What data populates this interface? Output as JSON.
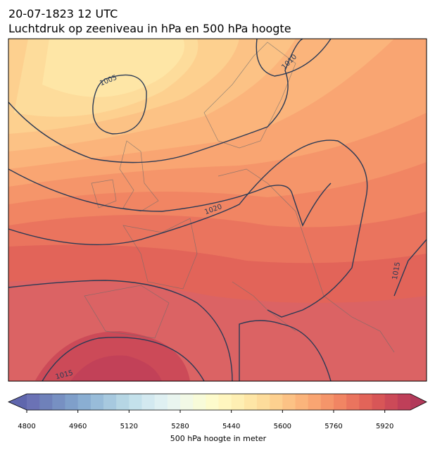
{
  "header": {
    "title": "20-07-1823 12 UTC",
    "subtitle": "Luchtdruk op zeeniveau in hPa en 500 hPa hoogte"
  },
  "map": {
    "contour_labels": [
      1005,
      1010,
      1020,
      1015,
      1015
    ]
  },
  "chart_data": {
    "type": "colorbar",
    "xlim": [
      4800,
      6000
    ],
    "xticks": [
      4800,
      4960,
      5120,
      5280,
      5440,
      5600,
      5760,
      5920
    ],
    "xlabel": "500 hPa hoogte in meter",
    "colors": [
      "#6b72b5",
      "#6f81ba",
      "#7790c2",
      "#7f9fca",
      "#8aaed2",
      "#98bcd9",
      "#a7c9df",
      "#b6d6e4",
      "#c4e1eb",
      "#d3e9f0",
      "#dff0f2",
      "#e9f5ef",
      "#f2f9e6",
      "#f8fbd9",
      "#fdfbcc",
      "#fff6bf",
      "#feefb3",
      "#fee6a6",
      "#fddc9b",
      "#fdd08f",
      "#fcc285",
      "#fbb47b",
      "#f9a572",
      "#f5956a",
      "#f18563",
      "#ea745e",
      "#e26459",
      "#d85657",
      "#cc4a58",
      "#bf3f59"
    ],
    "extend_colors": [
      "#5f66ad",
      "#b23a5a"
    ]
  }
}
